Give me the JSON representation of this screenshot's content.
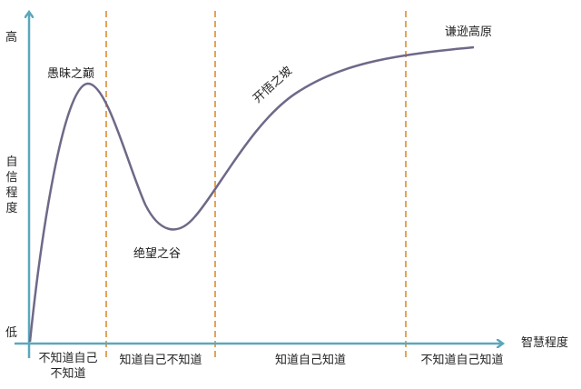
{
  "y_axis": {
    "high": "高",
    "label": "自信程度",
    "low": "低"
  },
  "x_axis": {
    "label": "智慧程度"
  },
  "stages": [
    {
      "name": "愚昧之巅",
      "zone": "不知道自己不知道"
    },
    {
      "name": "绝望之谷",
      "zone": "知道自己不知道"
    },
    {
      "name": "开悟之坡",
      "zone": "知道自己知道"
    },
    {
      "name": "谦逊高原",
      "zone": "不知道自己知道"
    }
  ],
  "zones": [
    "不知道自己\n不知道",
    "知道自己不知道",
    "知道自己知道",
    "不知道自己知道"
  ],
  "colors": {
    "axis": "#5ba7bb",
    "curve": "#6f6888",
    "divider": "#e3a45a"
  }
}
